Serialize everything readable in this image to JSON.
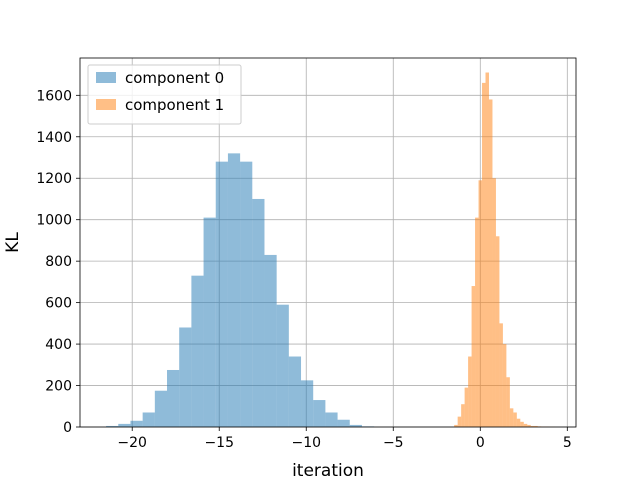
{
  "chart_data": {
    "type": "histogram",
    "title": "",
    "xlabel": "iteration",
    "ylabel": "KL",
    "xlim": [
      -23,
      5.5
    ],
    "ylim": [
      0,
      1780
    ],
    "x_ticks": [
      -20,
      -15,
      -10,
      -5,
      0,
      5
    ],
    "x_tick_labels": [
      "−20",
      "−15",
      "−10",
      "−5",
      "0",
      "5"
    ],
    "y_ticks": [
      0,
      200,
      400,
      600,
      800,
      1000,
      1200,
      1400,
      1600
    ],
    "y_tick_labels": [
      "0",
      "200",
      "400",
      "600",
      "800",
      "1000",
      "1200",
      "1400",
      "1600"
    ],
    "grid": true,
    "legend_position": "top-left",
    "series": [
      {
        "name": "component 0",
        "color": "#1f77b4",
        "alpha": 0.5,
        "bin_edges": [
          -21.5,
          -20.8,
          -20.1,
          -19.4,
          -18.7,
          -18.0,
          -17.3,
          -16.6,
          -15.9,
          -15.2,
          -14.5,
          -13.8,
          -13.1,
          -12.4,
          -11.7,
          -11.0,
          -10.3,
          -9.6,
          -8.9,
          -8.2,
          -7.5,
          -6.8,
          -6.1
        ],
        "counts": [
          5,
          15,
          30,
          70,
          175,
          275,
          480,
          730,
          1010,
          1280,
          1320,
          1280,
          1100,
          830,
          590,
          340,
          225,
          130,
          70,
          35,
          10,
          3
        ]
      },
      {
        "name": "component 1",
        "color": "#ff7f0e",
        "alpha": 0.5,
        "bin_edges": [
          -1.5,
          -1.3,
          -1.1,
          -0.9,
          -0.7,
          -0.5,
          -0.3,
          -0.1,
          0.1,
          0.3,
          0.5,
          0.7,
          0.9,
          1.1,
          1.3,
          1.5,
          1.7,
          1.9,
          2.1,
          2.3,
          2.5,
          2.7,
          2.9,
          3.1,
          3.3,
          3.5,
          3.7,
          3.9,
          4.1,
          4.3,
          4.5
        ],
        "counts": [
          10,
          50,
          110,
          190,
          340,
          680,
          1010,
          1190,
          1660,
          1710,
          1580,
          1200,
          920,
          500,
          400,
          240,
          90,
          70,
          40,
          25,
          15,
          10,
          5,
          5,
          3,
          2,
          2,
          1,
          1,
          0
        ]
      }
    ]
  }
}
